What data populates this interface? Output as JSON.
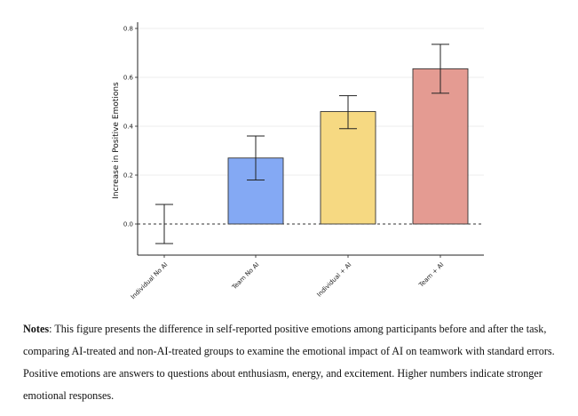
{
  "chart_data": {
    "type": "bar",
    "categories": [
      "Individual No AI",
      "Team No AI",
      "Individual + AI",
      "Team + AI"
    ],
    "values": [
      0.0,
      0.27,
      0.46,
      0.635
    ],
    "error_lower": [
      -0.08,
      0.18,
      0.39,
      0.535
    ],
    "error_upper": [
      0.08,
      0.36,
      0.525,
      0.735
    ],
    "colors": [
      "#8fb0f5",
      "#84a9f4",
      "#f6d982",
      "#e49b92"
    ],
    "ylabel": "Increase in Positive Emotions",
    "xlabel": "",
    "yticks": [
      0.0,
      0.2,
      0.4,
      0.6,
      0.8
    ],
    "ytick_labels": [
      "0.0",
      "0.2",
      "0.4",
      "0.6",
      "0.8"
    ],
    "ylim": [
      -0.12,
      0.82
    ],
    "reference_line": 0.0,
    "grid": true
  },
  "notes": {
    "label": "Notes",
    "text": ": This figure presents the difference in self-reported positive emotions among participants before and after the task, comparing AI-treated and non-AI-treated groups to examine the emotional impact of AI on teamwork with standard errors. Positive emotions are answers to questions about enthusiasm, energy, and excitement. Higher numbers indicate stronger emotional responses."
  }
}
